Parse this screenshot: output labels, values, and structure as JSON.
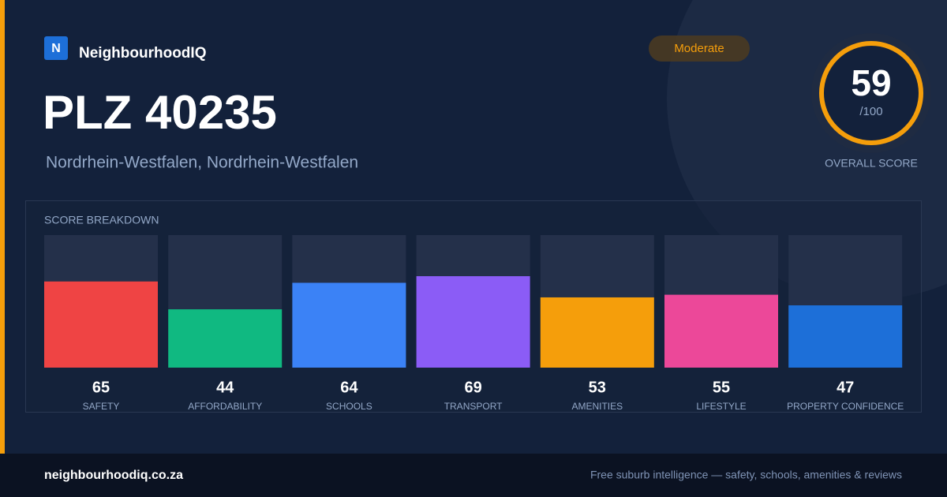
{
  "brand": {
    "logo": "N",
    "name": "NeighbourhoodIQ"
  },
  "header": {
    "title": "PLZ 40235",
    "subtitle": "Nordrhein-Westfalen, Nordrhein-Westfalen",
    "badge": "Moderate"
  },
  "score": {
    "value": 59,
    "out_of": "/100",
    "label": "OVERALL SCORE"
  },
  "chart_data": {
    "type": "bar",
    "title": "SCORE BREAKDOWN",
    "categories": [
      "SAFETY",
      "AFFORDABILITY",
      "SCHOOLS",
      "TRANSPORT",
      "AMENITIES",
      "LIFESTYLE",
      "PROPERTY CONFIDENCE"
    ],
    "values": [
      65,
      44,
      64,
      69,
      53,
      55,
      47
    ],
    "colors": [
      "#ef4444",
      "#10b981",
      "#3b82f6",
      "#8b5cf6",
      "#f59e0b",
      "#ec4899",
      "#1d6fd8"
    ],
    "ylim": [
      0,
      100
    ]
  },
  "footer": {
    "site": "neighbourhoodiq.co.za",
    "tagline": "Free suburb intelligence — safety, schools, amenities & reviews"
  }
}
